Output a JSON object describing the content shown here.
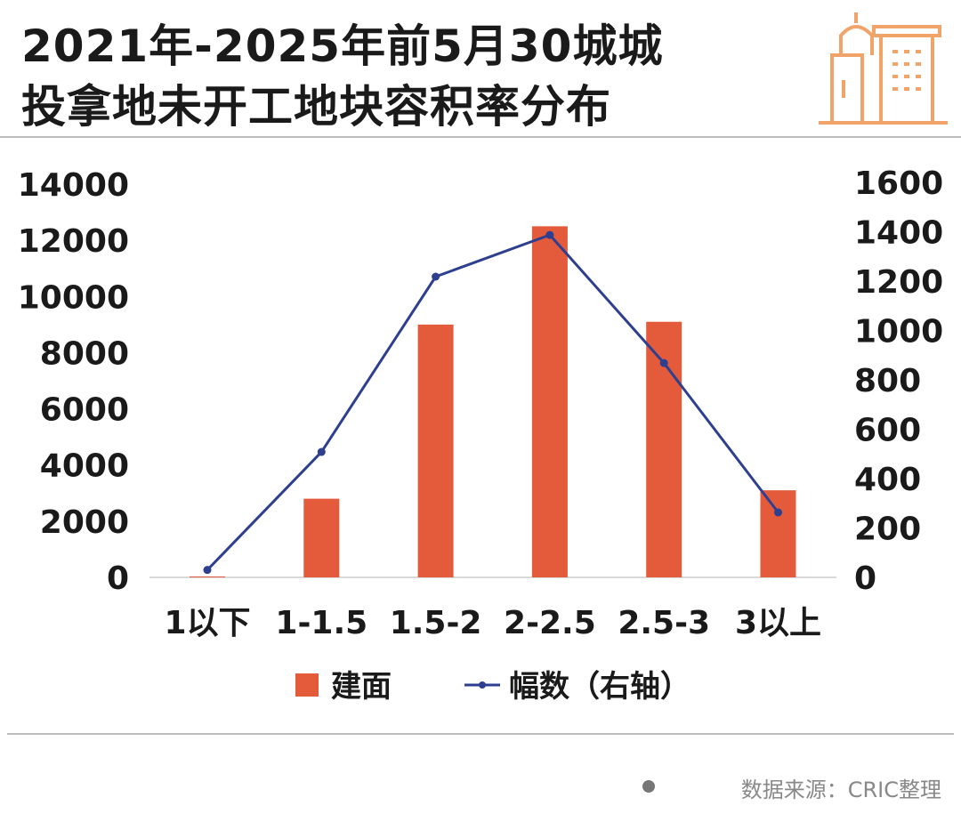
{
  "title_line1": "2021年-2025年前5月30城城",
  "title_line2": "投拿地未开工地块容积率分布",
  "source": "数据来源：CRIC整理",
  "colors": {
    "bar": "#e45b3b",
    "line": "#2e3f8f",
    "icon": "#f0a46a"
  },
  "chart_data": {
    "type": "bar",
    "title": "2021年-2025年前5月30城城投拿地未开工地块容积率分布",
    "categories": [
      "1以下",
      "1-1.5",
      "1.5-2",
      "2-2.5",
      "2.5-3",
      "3以上"
    ],
    "series": [
      {
        "name": "建面",
        "type": "bar",
        "axis": "left",
        "values": [
          30,
          2800,
          9000,
          12500,
          9100,
          3100
        ]
      },
      {
        "name": "幅数（右轴）",
        "type": "line",
        "axis": "right",
        "values": [
          30,
          508,
          1218,
          1387,
          868,
          263
        ]
      }
    ],
    "y_left": {
      "ylim": [
        0,
        14000
      ],
      "ticks": [
        "0",
        "2000",
        "4000",
        "6000",
        "8000",
        "10000",
        "12000",
        "14000"
      ]
    },
    "y_right": {
      "ylim": [
        0,
        1600
      ],
      "ticks": [
        "0",
        "200",
        "400",
        "600",
        "800",
        "1000",
        "1200",
        "1400",
        "1600"
      ]
    },
    "legend": "bottom",
    "grid": false
  }
}
